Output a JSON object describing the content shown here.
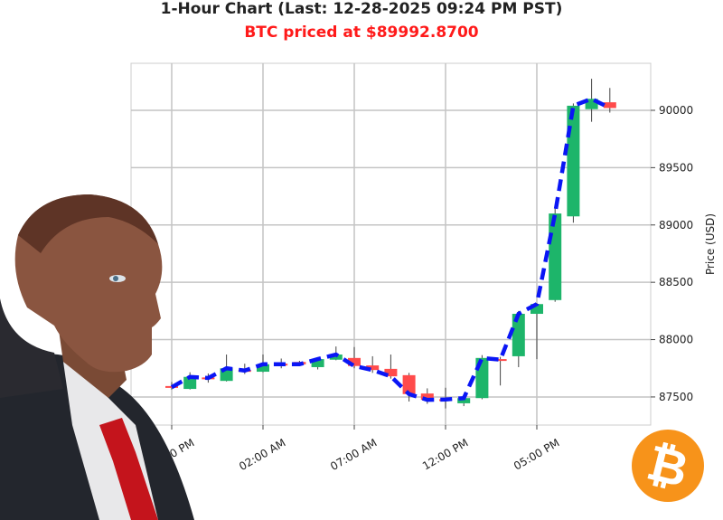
{
  "chart_data": {
    "type": "candlestick",
    "title": "1-Hour Chart (Last: 12-28-2025 09:24 PM PST)",
    "subtitle": "BTC priced at $89992.8700",
    "ylabel": "Price (USD)",
    "xlabel": "",
    "ylim": [
      87255,
      90410
    ],
    "yticks": [
      87500,
      88000,
      88500,
      89000,
      89500,
      90000
    ],
    "xticks": [
      {
        "index": 0,
        "label": "09:00 PM"
      },
      {
        "index": 5,
        "label": "02:00 AM"
      },
      {
        "index": 10,
        "label": "07:00 AM"
      },
      {
        "index": 15,
        "label": "12:00 PM"
      },
      {
        "index": 20,
        "label": "05:00 PM"
      }
    ],
    "grid": true,
    "y_axis_position": "right",
    "colors": {
      "up": "#1db56a",
      "down": "#ff4b4b",
      "line": "#0a16f5",
      "wick": "#444444"
    },
    "series": [
      {
        "type": "ohlc",
        "x": [
          "09:00 PM",
          "10:00 PM",
          "11:00 PM",
          "12:00 AM",
          "01:00 AM",
          "02:00 AM",
          "03:00 AM",
          "04:00 AM",
          "05:00 AM",
          "06:00 AM",
          "07:00 AM",
          "08:00 AM",
          "09:00 AM",
          "10:00 AM",
          "11:00 AM",
          "12:00 PM",
          "01:00 PM",
          "02:00 PM",
          "03:00 PM",
          "04:00 PM",
          "05:00 PM",
          "06:00 PM",
          "07:00 PM",
          "08:00 PM",
          "09:00 PM"
        ],
        "open": [
          87595,
          87570,
          87670,
          87640,
          87735,
          87720,
          87790,
          87805,
          87760,
          87825,
          87840,
          87775,
          87745,
          87690,
          87530,
          87480,
          87445,
          87490,
          87830,
          87855,
          88225,
          88345,
          89075,
          90010,
          90070
        ],
        "high": [
          87630,
          87715,
          87705,
          87870,
          87790,
          87870,
          87835,
          87815,
          87840,
          87940,
          87935,
          87855,
          87870,
          87710,
          87575,
          87580,
          87520,
          87865,
          87850,
          88250,
          88320,
          89150,
          90060,
          90275,
          90195
        ],
        "low": [
          87565,
          87565,
          87625,
          87635,
          87700,
          87715,
          87750,
          87770,
          87740,
          87820,
          87750,
          87710,
          87660,
          87460,
          87440,
          87400,
          87420,
          87480,
          87600,
          87760,
          87830,
          88330,
          89020,
          89900,
          89980
        ],
        "close": [
          87585,
          87675,
          87665,
          87750,
          87730,
          87785,
          87785,
          87785,
          87830,
          87870,
          87770,
          87735,
          87680,
          87525,
          87475,
          87478,
          87490,
          87840,
          87825,
          88225,
          88310,
          89100,
          90040,
          90100,
          90020
        ]
      },
      {
        "type": "line",
        "style": "dashed",
        "values": [
          87585,
          87675,
          87665,
          87750,
          87730,
          87785,
          87785,
          87785,
          87830,
          87870,
          87770,
          87735,
          87680,
          87525,
          87475,
          87478,
          87490,
          87840,
          87825,
          88225,
          88310,
          89100,
          90040,
          90100,
          90020
        ]
      }
    ]
  },
  "logo": {
    "symbol": "₿",
    "color": "#f7931a"
  }
}
